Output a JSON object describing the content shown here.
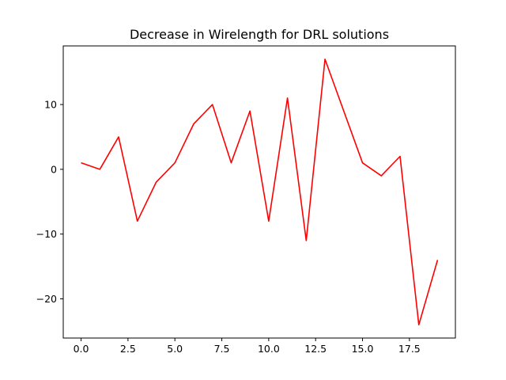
{
  "chart_data": {
    "type": "line",
    "title": "Decrease in Wirelength for DRL solutions",
    "xlabel": "",
    "ylabel": "",
    "xlim": [
      -0.95,
      19.95
    ],
    "ylim": [
      -26.05,
      19.05
    ],
    "xticks": [
      0.0,
      2.5,
      5.0,
      7.5,
      10.0,
      12.5,
      15.0,
      17.5
    ],
    "xtick_labels": [
      "0.0",
      "2.5",
      "5.0",
      "7.5",
      "10.0",
      "12.5",
      "15.0",
      "17.5"
    ],
    "yticks": [
      -20,
      -10,
      0,
      10
    ],
    "ytick_labels": [
      "−20",
      "−10",
      "0",
      "10"
    ],
    "grid": false,
    "series": [
      {
        "color": "#ff0000",
        "x": [
          0,
          1,
          2,
          3,
          4,
          5,
          6,
          7,
          8,
          9,
          10,
          11,
          12,
          13,
          14,
          15,
          16,
          17,
          18,
          19
        ],
        "values": [
          1,
          0,
          5,
          -8,
          -2,
          1,
          7,
          10,
          1,
          9,
          -8,
          11,
          -11,
          17,
          9,
          1,
          -1,
          2,
          -24,
          -14
        ]
      }
    ]
  }
}
